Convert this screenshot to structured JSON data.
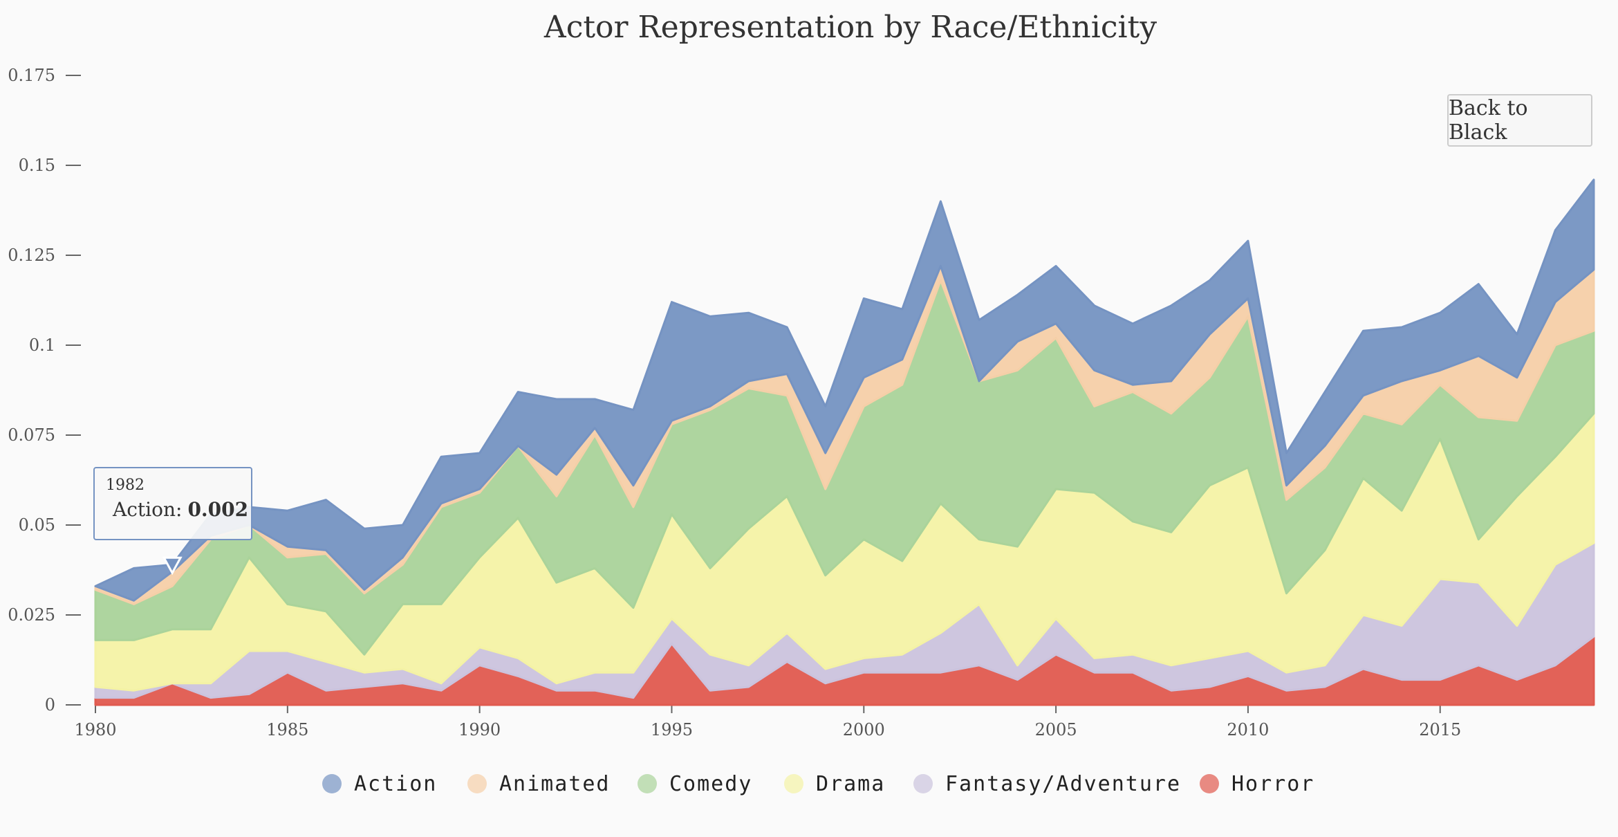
{
  "chart_data": {
    "type": "area",
    "stacked": true,
    "title": "Actor Representation by Race/Ethnicity",
    "x": [
      1980,
      1981,
      1982,
      1983,
      1984,
      1985,
      1986,
      1987,
      1988,
      1989,
      1990,
      1991,
      1992,
      1993,
      1994,
      1995,
      1996,
      1997,
      1998,
      1999,
      2000,
      2001,
      2002,
      2003,
      2004,
      2005,
      2006,
      2007,
      2008,
      2009,
      2010,
      2011,
      2012,
      2013,
      2014,
      2015,
      2016,
      2017,
      2018,
      2019
    ],
    "x_ticks": [
      1980,
      1985,
      1990,
      1995,
      2000,
      2005,
      2010,
      2015
    ],
    "x_tick_labels": [
      "1980",
      "1985",
      "1990",
      "1995",
      "2000",
      "2005",
      "2010",
      "2015"
    ],
    "y_ticks": [
      0,
      0.025,
      0.05,
      0.075,
      0.1,
      0.125,
      0.15,
      0.175
    ],
    "y_tick_labels": [
      "0",
      "0.025",
      "0.05",
      "0.075",
      "0.1",
      "0.125",
      "0.15",
      "0.175"
    ],
    "ylim": [
      0,
      0.175
    ],
    "xlim": [
      1980,
      2019
    ],
    "legend_position": "bottom",
    "series": [
      {
        "name": "Horror",
        "color": "#e05a4f",
        "values": [
          0.002,
          0.002,
          0.006,
          0.002,
          0.003,
          0.009,
          0.004,
          0.005,
          0.006,
          0.004,
          0.011,
          0.008,
          0.004,
          0.004,
          0.002,
          0.017,
          0.004,
          0.005,
          0.012,
          0.006,
          0.009,
          0.009,
          0.009,
          0.011,
          0.007,
          0.014,
          0.009,
          0.009,
          0.004,
          0.005,
          0.008,
          0.004,
          0.005,
          0.01,
          0.007,
          0.007,
          0.011,
          0.007,
          0.011,
          0.019
        ]
      },
      {
        "name": "Fantasy/Adventure",
        "color": "#cbc3dd",
        "values": [
          0.003,
          0.002,
          0.0,
          0.004,
          0.012,
          0.006,
          0.008,
          0.004,
          0.004,
          0.002,
          0.005,
          0.005,
          0.002,
          0.005,
          0.007,
          0.007,
          0.01,
          0.006,
          0.008,
          0.004,
          0.004,
          0.005,
          0.011,
          0.017,
          0.004,
          0.01,
          0.004,
          0.005,
          0.007,
          0.008,
          0.007,
          0.005,
          0.006,
          0.015,
          0.015,
          0.028,
          0.023,
          0.015,
          0.028,
          0.026
        ]
      },
      {
        "name": "Drama",
        "color": "#f4f2a5",
        "values": [
          0.013,
          0.014,
          0.015,
          0.015,
          0.026,
          0.013,
          0.014,
          0.005,
          0.018,
          0.022,
          0.025,
          0.039,
          0.028,
          0.029,
          0.018,
          0.029,
          0.024,
          0.038,
          0.038,
          0.026,
          0.033,
          0.026,
          0.036,
          0.018,
          0.033,
          0.036,
          0.046,
          0.037,
          0.037,
          0.048,
          0.051,
          0.022,
          0.032,
          0.038,
          0.032,
          0.039,
          0.012,
          0.036,
          0.03,
          0.036
        ]
      },
      {
        "name": "Comedy",
        "color": "#aad39a",
        "values": [
          0.014,
          0.01,
          0.012,
          0.025,
          0.009,
          0.013,
          0.016,
          0.017,
          0.011,
          0.027,
          0.018,
          0.02,
          0.024,
          0.037,
          0.028,
          0.025,
          0.044,
          0.039,
          0.028,
          0.024,
          0.037,
          0.049,
          0.062,
          0.044,
          0.049,
          0.042,
          0.024,
          0.036,
          0.033,
          0.03,
          0.042,
          0.026,
          0.023,
          0.018,
          0.024,
          0.015,
          0.034,
          0.021,
          0.031,
          0.023
        ]
      },
      {
        "name": "Animated",
        "color": "#f5cfa8",
        "values": [
          0.001,
          0.001,
          0.004,
          0.001,
          0.0,
          0.003,
          0.001,
          0.001,
          0.002,
          0.001,
          0.001,
          0.0,
          0.006,
          0.002,
          0.006,
          0.001,
          0.001,
          0.002,
          0.006,
          0.01,
          0.008,
          0.007,
          0.004,
          0.0,
          0.008,
          0.004,
          0.01,
          0.002,
          0.009,
          0.012,
          0.005,
          0.004,
          0.006,
          0.005,
          0.012,
          0.004,
          0.017,
          0.012,
          0.012,
          0.017
        ]
      },
      {
        "name": "Action",
        "color": "#7593c2",
        "values": [
          0.0,
          0.009,
          0.002,
          0.006,
          0.005,
          0.01,
          0.014,
          0.017,
          0.009,
          0.013,
          0.01,
          0.015,
          0.021,
          0.008,
          0.021,
          0.033,
          0.025,
          0.019,
          0.013,
          0.013,
          0.022,
          0.014,
          0.018,
          0.017,
          0.013,
          0.016,
          0.018,
          0.017,
          0.021,
          0.015,
          0.016,
          0.009,
          0.015,
          0.018,
          0.015,
          0.016,
          0.02,
          0.012,
          0.02,
          0.025
        ]
      }
    ],
    "legend_order": [
      "Action",
      "Animated",
      "Comedy",
      "Drama",
      "Fantasy/Adventure",
      "Horror"
    ]
  },
  "button": {
    "label": "Back to Black"
  },
  "tooltip": {
    "year": "1982",
    "series": "Action",
    "label": "Action:",
    "value": "0.002"
  }
}
